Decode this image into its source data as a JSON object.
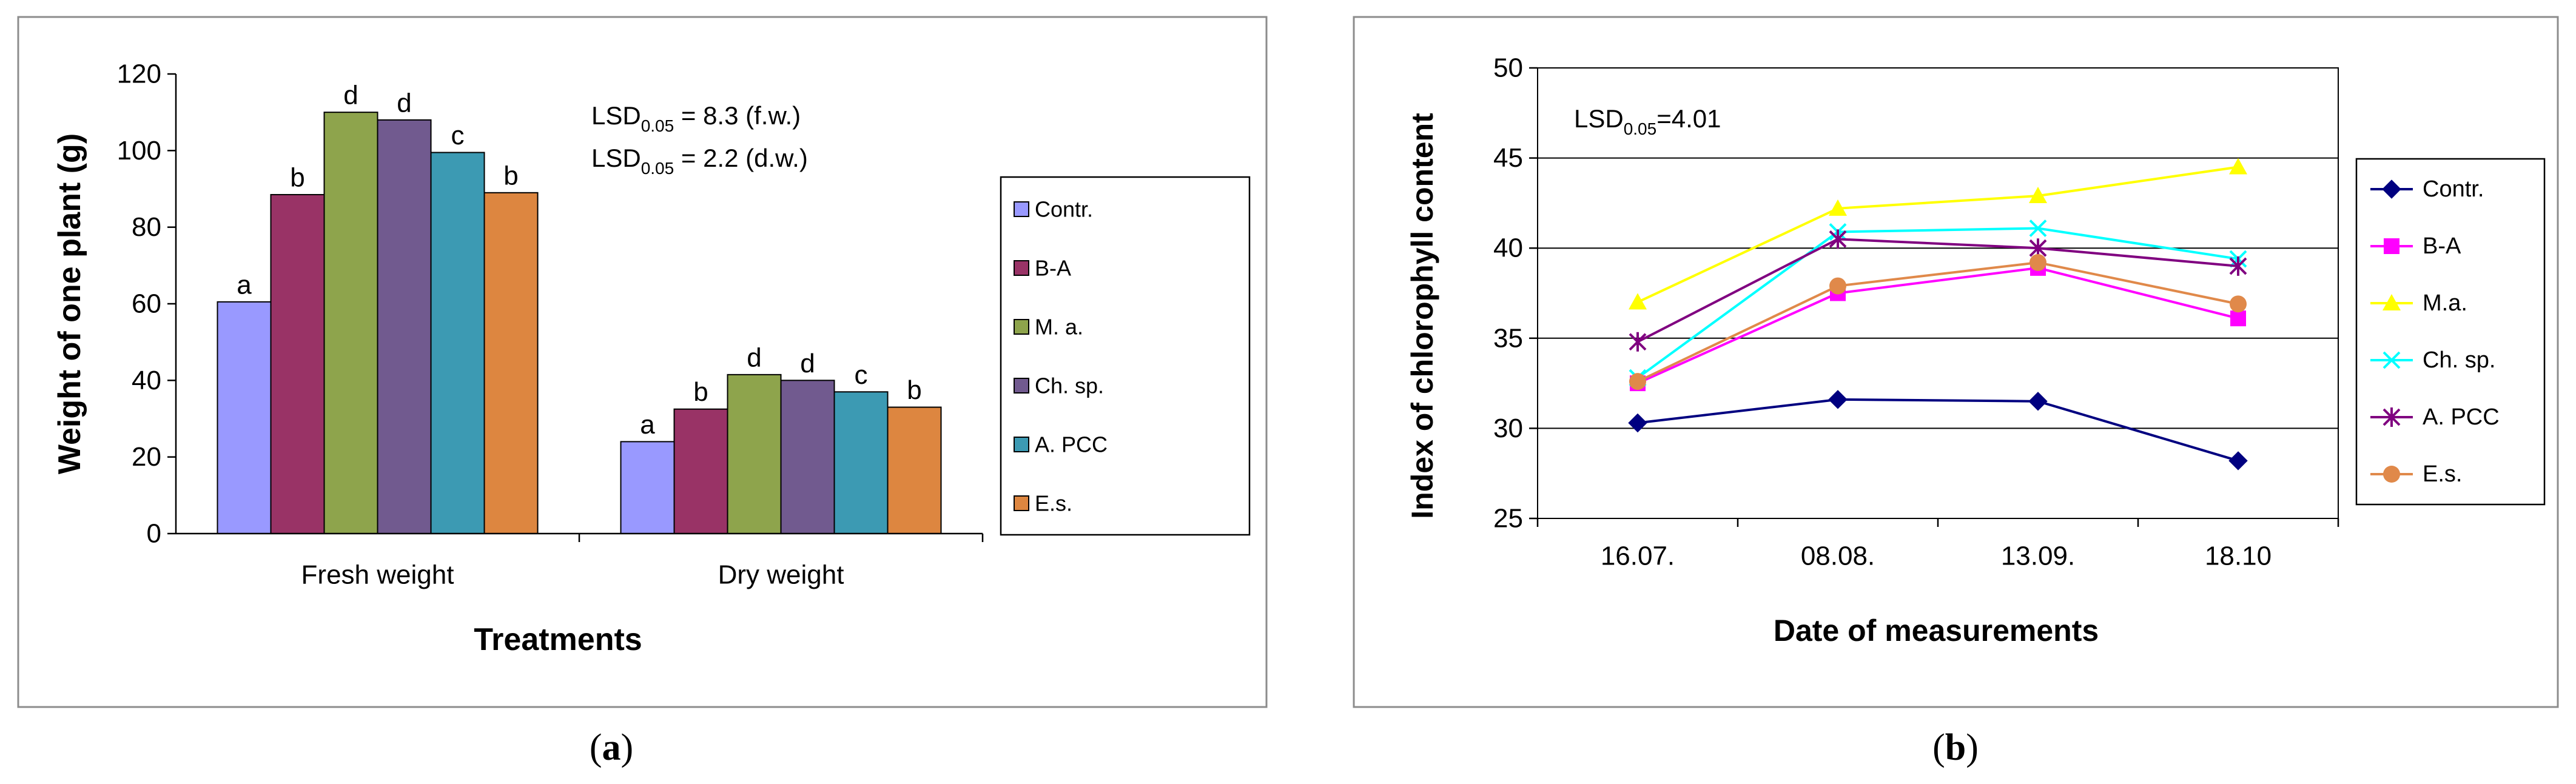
{
  "panels": {
    "a": {
      "label_open": "(",
      "label_letter": "a",
      "label_close": ")"
    },
    "b": {
      "label_open": "(",
      "label_letter": "b",
      "label_close": ")"
    }
  },
  "chart_data": [
    {
      "type": "bar",
      "title": "",
      "xlabel": "Treatments",
      "ylabel": "Weight of one plant (g)",
      "ylim": [
        0,
        120
      ],
      "yticks": [
        0,
        20,
        40,
        60,
        80,
        100,
        120
      ],
      "grid": false,
      "categories": [
        "Fresh weight",
        "Dry weight"
      ],
      "series": [
        {
          "name": "Contr.",
          "color": "#9999FF",
          "values": [
            60.5,
            24.0
          ],
          "letters": [
            "a",
            "a"
          ]
        },
        {
          "name": "B-A",
          "color": "#993366",
          "values": [
            88.5,
            32.5
          ],
          "letters": [
            "b",
            "b"
          ]
        },
        {
          "name": "M. a.",
          "color": "#8EA44C",
          "values": [
            110.0,
            41.5
          ],
          "letters": [
            "d",
            "d"
          ]
        },
        {
          "name": "Ch. sp.",
          "color": "#715A8F",
          "values": [
            108.0,
            40.0
          ],
          "letters": [
            "d",
            "d"
          ]
        },
        {
          "name": "A. PCC",
          "color": "#3C9AB3",
          "values": [
            99.5,
            37.0
          ],
          "letters": [
            "c",
            "c"
          ]
        },
        {
          "name": "E.s.",
          "color": "#DD8640",
          "values": [
            89.0,
            33.0
          ],
          "letters": [
            "b",
            "b"
          ]
        }
      ],
      "annotations": [
        {
          "prefix": "LSD",
          "sub": "0.05",
          "suffix": " = 8.3 (f.w.)"
        },
        {
          "prefix": "LSD",
          "sub": "0.05",
          "suffix": " = 2.2 (d.w.)"
        }
      ],
      "legend_position": "right"
    },
    {
      "type": "line",
      "title": "",
      "xlabel": "Date of measurements",
      "ylabel": "Index of chlorophyll content",
      "ylim": [
        25,
        50
      ],
      "yticks": [
        25,
        30,
        35,
        40,
        45,
        50
      ],
      "grid": true,
      "categories": [
        "16.07.",
        "08.08.",
        "13.09.",
        "18.10"
      ],
      "series": [
        {
          "name": "Contr.",
          "color": "#000080",
          "marker": "diamond",
          "values": [
            30.3,
            31.6,
            31.5,
            28.2
          ]
        },
        {
          "name": "B-A",
          "color": "#FF00FF",
          "marker": "square",
          "values": [
            32.5,
            37.5,
            38.9,
            36.1
          ]
        },
        {
          "name": "M.a.",
          "color": "#FFFF00",
          "marker": "triangle",
          "values": [
            37.0,
            42.2,
            42.9,
            44.5
          ]
        },
        {
          "name": "Ch. sp.",
          "color": "#00FFFF",
          "marker": "x",
          "values": [
            32.8,
            40.9,
            41.1,
            39.4
          ]
        },
        {
          "name": "A. PCC",
          "color": "#800080",
          "marker": "star",
          "values": [
            34.8,
            40.5,
            40.0,
            39.0
          ]
        },
        {
          "name": "E.s.",
          "color": "#E0894A",
          "marker": "circle",
          "values": [
            32.6,
            37.9,
            39.2,
            36.9
          ]
        }
      ],
      "annotations": [
        {
          "prefix": "LSD",
          "sub": "0.05",
          "suffix": "=4.01"
        }
      ],
      "legend_position": "right"
    }
  ]
}
